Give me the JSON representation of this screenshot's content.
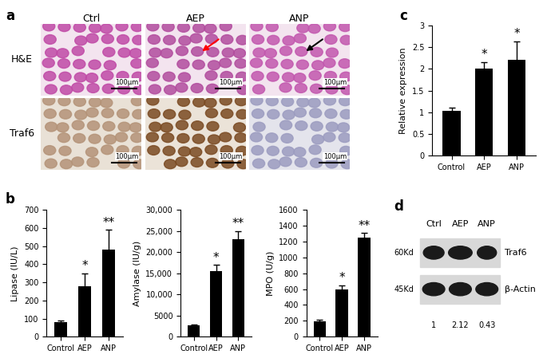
{
  "panel_a": {
    "panel_label": "a",
    "columns": [
      "Ctrl",
      "AEP",
      "ANP"
    ],
    "rows": [
      "H&E",
      "Traf6"
    ],
    "scale_bar": "100μm"
  },
  "chart_data": [
    {
      "type": "bar",
      "panel_label": "b",
      "ylabel": "Lipase (IU/L)",
      "categories": [
        "Control",
        "AEP",
        "ANP"
      ],
      "values": [
        80,
        280,
        480
      ],
      "errors": [
        8,
        70,
        110
      ],
      "significance": [
        null,
        "*",
        "**"
      ],
      "color": "#000000",
      "ylim": [
        0,
        700
      ],
      "yticks": [
        0,
        100,
        200,
        300,
        400,
        500,
        600,
        700
      ],
      "grid": false
    },
    {
      "type": "bar",
      "ylabel": "Amylase (IU/g)",
      "categories": [
        "Control",
        "AEP",
        "ANP"
      ],
      "values": [
        2700,
        15500,
        23000
      ],
      "errors": [
        200,
        1500,
        2000
      ],
      "significance": [
        null,
        "*",
        "**"
      ],
      "color": "#000000",
      "ylim": [
        0,
        30000
      ],
      "yticks": [
        0,
        5000,
        {
          "value": 10000,
          "label": "10,000"
        },
        {
          "value": 15000,
          "label": "15,000"
        },
        {
          "value": 20000,
          "label": "20,000"
        },
        {
          "value": 25000,
          "label": "25,000"
        },
        {
          "value": 30000,
          "label": "30,000"
        }
      ],
      "grid": false
    },
    {
      "type": "bar",
      "ylabel": "MPO (U/g)",
      "categories": [
        "Control",
        "AEP",
        "ANP"
      ],
      "values": [
        190,
        600,
        1250
      ],
      "errors": [
        25,
        50,
        60
      ],
      "significance": [
        null,
        "*",
        "**"
      ],
      "color": "#000000",
      "ylim": [
        0,
        1600
      ],
      "yticks": [
        0,
        200,
        400,
        600,
        800,
        1000,
        1200,
        1400,
        1600
      ],
      "grid": false
    },
    {
      "type": "bar",
      "panel_label": "c",
      "ylabel": "Relative expression",
      "categories": [
        "Control",
        "AEP",
        "ANP"
      ],
      "values": [
        1.03,
        2.0,
        2.2
      ],
      "errors": [
        0.07,
        0.15,
        0.43
      ],
      "significance": [
        null,
        "*",
        "*"
      ],
      "color": "#000000",
      "ylim": [
        0,
        3
      ],
      "yticks": [
        0,
        0.5,
        1,
        1.5,
        2,
        2.5,
        3
      ],
      "grid": false
    }
  ],
  "panel_d": {
    "panel_label": "d",
    "lanes": [
      "Ctrl",
      "AEP",
      "ANP"
    ],
    "bands": [
      {
        "name": "Traf6",
        "size": "60Kd"
      },
      {
        "name": "β-Actin",
        "size": "45Kd"
      }
    ],
    "quantification": [
      1,
      2.12,
      0.43
    ]
  }
}
